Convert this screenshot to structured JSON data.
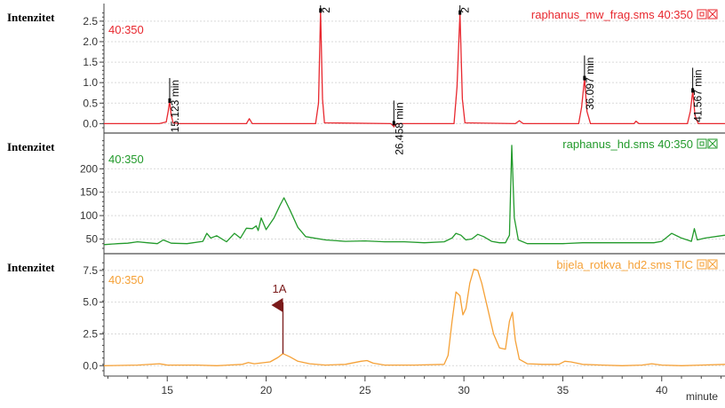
{
  "x_axis_label": "minute",
  "x_ticks": [
    15,
    20,
    25,
    30,
    35,
    40
  ],
  "panels": [
    {
      "ylabel": "Intenzitet",
      "channel": "40:350",
      "file_label": "raphanus_mw_frag.sms 40:350",
      "color": "#e8282f",
      "yticks": [
        "0.0",
        "0.5",
        "1.0",
        "1.5",
        "2.0",
        "2.5"
      ],
      "peak_labels": [
        {
          "x": 15.123,
          "text": "15.123 min"
        },
        {
          "x": 22.75,
          "text": "2"
        },
        {
          "x": 26.458,
          "text": "26.458 min"
        },
        {
          "x": 29.8,
          "text": "2"
        },
        {
          "x": 36.097,
          "text": "36.097 min"
        },
        {
          "x": 41.567,
          "text": "41.567 min"
        }
      ]
    },
    {
      "ylabel": "Intenzitet",
      "channel": "40:350",
      "file_label": "raphanus_hd.sms 40:350",
      "color": "#229a2b",
      "yticks": [
        "50",
        "100",
        "150",
        "200"
      ]
    },
    {
      "ylabel": "Intenzitet",
      "channel": "40:350",
      "file_label": "bijela_rotkva_hd2.sms TIC",
      "color": "#f5a137",
      "yticks": [
        "0.0",
        "2.5",
        "5.0",
        "7.5"
      ],
      "marker_label": "1A"
    }
  ],
  "chart_data": [
    {
      "type": "line",
      "title": "raphanus_mw_frag.sms 40:350",
      "xlabel": "minute",
      "ylabel": "Intenzitet",
      "xlim": [
        11.8,
        43.2
      ],
      "ylim": [
        -0.1,
        2.8
      ],
      "series": [
        {
          "name": "raphanus_mw_frag.sms 40:350",
          "x": [
            11.8,
            14.6,
            14.95,
            15.05,
            15.12,
            15.2,
            15.3,
            15.6,
            19.0,
            19.15,
            19.3,
            22.5,
            22.65,
            22.75,
            22.85,
            22.95,
            26.3,
            26.42,
            26.46,
            26.52,
            26.65,
            29.5,
            29.65,
            29.8,
            29.92,
            30.05,
            32.6,
            32.8,
            33.0,
            35.8,
            35.95,
            36.1,
            36.22,
            36.4,
            38.6,
            38.7,
            38.85,
            41.3,
            41.45,
            41.57,
            41.68,
            41.85,
            43.2
          ],
          "y": [
            0.0,
            0.0,
            0.04,
            0.3,
            0.55,
            0.2,
            0.02,
            0.0,
            0.0,
            0.12,
            0.0,
            0.0,
            0.5,
            2.75,
            0.6,
            0.02,
            0.0,
            -0.05,
            -0.08,
            -0.03,
            0.0,
            0.0,
            0.9,
            2.7,
            0.6,
            0.02,
            0.0,
            0.07,
            0.0,
            0.0,
            0.4,
            1.1,
            0.3,
            0.0,
            0.0,
            0.06,
            0.0,
            0.0,
            0.3,
            0.8,
            0.2,
            0.0,
            0.0
          ]
        }
      ]
    },
    {
      "type": "line",
      "title": "raphanus_hd.sms 40:350",
      "xlabel": "minute",
      "ylabel": "Intenzitet",
      "xlim": [
        11.8,
        43.2
      ],
      "ylim": [
        30,
        265
      ],
      "series": [
        {
          "name": "raphanus_hd.sms 40:350",
          "x": [
            11.8,
            12.5,
            13.0,
            13.5,
            14.0,
            14.5,
            14.8,
            15.2,
            16.0,
            16.8,
            17.0,
            17.2,
            17.5,
            18.0,
            18.4,
            18.7,
            19.0,
            19.3,
            19.5,
            19.6,
            19.75,
            20.0,
            20.4,
            20.7,
            20.9,
            21.2,
            21.6,
            22.0,
            23.0,
            24.0,
            25.0,
            26.0,
            27.0,
            28.0,
            29.0,
            29.4,
            29.6,
            29.85,
            30.1,
            30.4,
            30.7,
            31.0,
            31.4,
            31.8,
            32.1,
            32.3,
            32.42,
            32.55,
            32.75,
            33.2,
            34.0,
            35.0,
            36.0,
            37.0,
            38.0,
            39.0,
            39.6,
            40.0,
            40.5,
            41.0,
            41.5,
            41.65,
            41.8,
            42.2,
            43.2
          ],
          "y": [
            38,
            40,
            41,
            44,
            42,
            40,
            48,
            41,
            40,
            45,
            62,
            52,
            57,
            44,
            62,
            52,
            73,
            72,
            78,
            68,
            95,
            70,
            95,
            122,
            138,
            112,
            75,
            55,
            48,
            45,
            46,
            44,
            44,
            42,
            44,
            52,
            62,
            58,
            48,
            50,
            60,
            55,
            45,
            42,
            42,
            58,
            250,
            95,
            48,
            40,
            40,
            40,
            42,
            42,
            42,
            42,
            42,
            45,
            62,
            52,
            45,
            72,
            48,
            52,
            58
          ]
        }
      ]
    },
    {
      "type": "line",
      "title": "bijela_rotkva_hd2.sms TIC",
      "xlabel": "minute",
      "ylabel": "Intenzitet",
      "xlim": [
        11.8,
        43.2
      ],
      "ylim": [
        -0.4,
        8.4
      ],
      "series": [
        {
          "name": "bijela_rotkva_hd2.sms TIC",
          "x": [
            11.8,
            13.5,
            14.6,
            14.8,
            15.0,
            16.5,
            17.5,
            18.8,
            19.1,
            19.4,
            20.2,
            20.6,
            20.85,
            21.2,
            21.6,
            22.2,
            23.0,
            24.0,
            24.8,
            25.1,
            25.4,
            26.0,
            27.5,
            29.0,
            29.2,
            29.4,
            29.6,
            29.8,
            29.95,
            30.1,
            30.3,
            30.5,
            30.7,
            30.9,
            31.2,
            31.5,
            31.8,
            32.1,
            32.3,
            32.45,
            32.6,
            32.8,
            33.2,
            34.0,
            34.8,
            35.1,
            35.4,
            36.0,
            37.0,
            38.0,
            39.0,
            39.5,
            40.0,
            41.0,
            42.0,
            43.2
          ],
          "y": [
            0.0,
            0.05,
            0.15,
            0.1,
            0.05,
            0.05,
            0.0,
            0.1,
            0.25,
            0.15,
            0.3,
            0.65,
            0.95,
            0.7,
            0.35,
            0.15,
            0.05,
            0.1,
            0.35,
            0.4,
            0.2,
            0.05,
            0.05,
            0.1,
            0.8,
            3.5,
            5.8,
            5.5,
            4.0,
            4.5,
            6.5,
            7.6,
            7.5,
            6.5,
            4.5,
            2.5,
            1.4,
            1.3,
            3.5,
            4.2,
            2.0,
            0.5,
            0.15,
            0.1,
            0.1,
            0.35,
            0.3,
            0.1,
            0.05,
            0.0,
            0.05,
            0.15,
            0.05,
            0.0,
            0.05,
            0.1
          ]
        }
      ]
    }
  ]
}
